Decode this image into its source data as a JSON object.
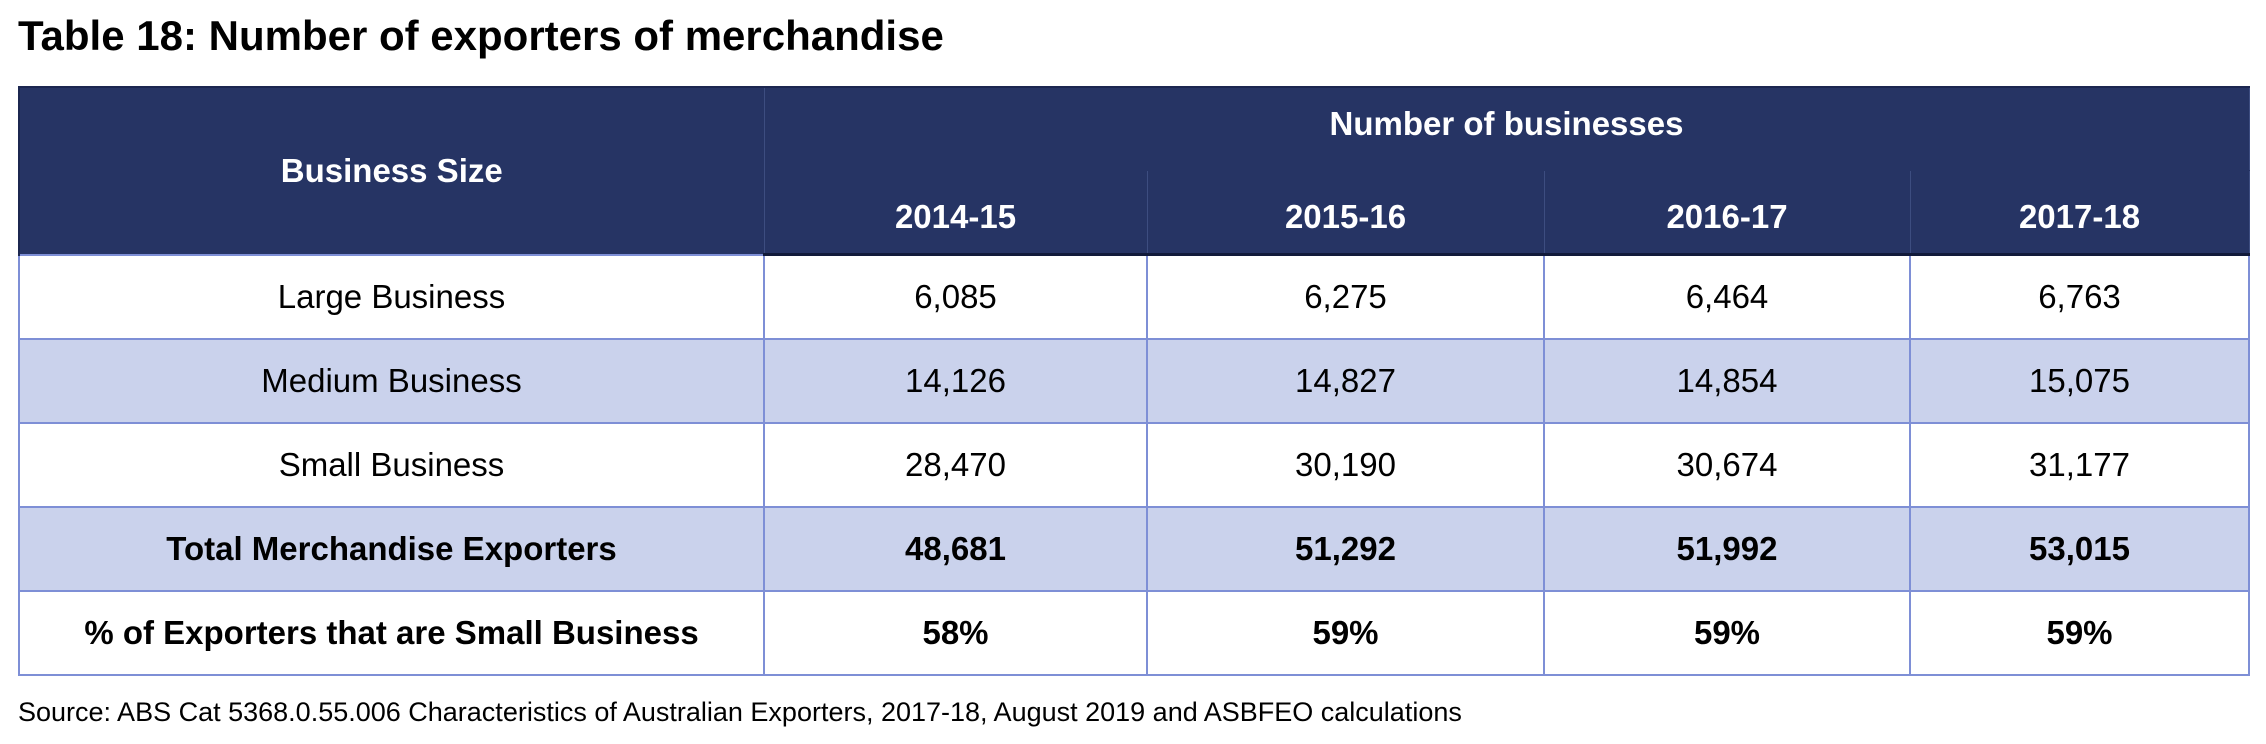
{
  "title": "Table 18: Number of exporters of merchandise",
  "table": {
    "row_header": "Business Size",
    "group_header": "Number of businesses",
    "years": [
      "2014-15",
      "2015-16",
      "2016-17",
      "2017-18"
    ],
    "rows": [
      {
        "label": "Large Business",
        "values": [
          "6,085",
          "6,275",
          "6,464",
          "6,763"
        ]
      },
      {
        "label": "Medium Business",
        "values": [
          "14,126",
          "14,827",
          "14,854",
          "15,075"
        ]
      },
      {
        "label": "Small Business",
        "values": [
          "28,470",
          "30,190",
          "30,674",
          "31,177"
        ]
      },
      {
        "label": "Total Merchandise Exporters",
        "values": [
          "48,681",
          "51,292",
          "51,992",
          "53,015"
        ]
      },
      {
        "label": "% of Exporters that are Small Business",
        "values": [
          "58%",
          "59%",
          "59%",
          "59%"
        ]
      }
    ]
  },
  "source": "Source: ABS Cat 5368.0.55.006 Characteristics of Australian Exporters, 2017-18, August 2019 and ASBFEO calculations",
  "colors": {
    "header_bg": "#263464",
    "header_text": "#ffffff",
    "band_bg": "#cad2ec",
    "grid": "#7e8fd6"
  }
}
